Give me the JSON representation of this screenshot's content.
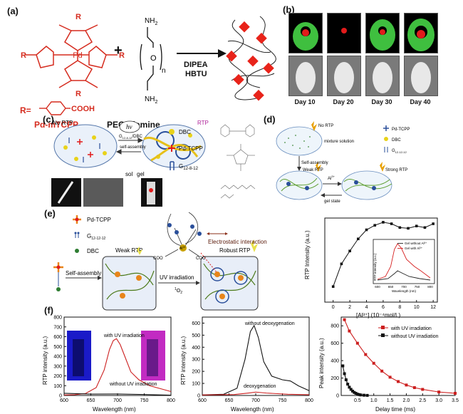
{
  "panel_labels": {
    "a": "(a)",
    "b": "(b)",
    "c": "(c)",
    "d": "(d)",
    "e": "(e)",
    "f": "(f)"
  },
  "a": {
    "R": "R",
    "Pd": "Pd",
    "N": "N",
    "r_def": "R=",
    "cooh": "COOH",
    "plus": "+",
    "nh2": "NH",
    "sub2": "2",
    "O": "O",
    "n": "n",
    "reagent1": "DIPEA",
    "reagent2": "HBTU",
    "name1": "Pd-mTCPP",
    "name2": "PEG-diamine"
  },
  "b": {
    "days": [
      "Day 10",
      "Day 20",
      "Day 30",
      "Day 40"
    ]
  },
  "c": {
    "no_rtp": "No RTP",
    "hv": "hv",
    "rtp": "RTP",
    "assembly_line1": "G",
    "assembly_sub": "12-8-12",
    "assembly_line1b": "/DBC",
    "assembly_line2": "self-assembly",
    "sol": "sol",
    "gel": "gel",
    "dbc": "DBC",
    "pd": "Pd-TCPP",
    "g": "G",
    "g_sub": "12-8-12"
  },
  "d": {
    "no_rtp": "No RTP",
    "mix": "mixture solution",
    "pd": "Pd-TCPP",
    "dbc": "DBC",
    "g": "G",
    "g_sub": "12-12-12",
    "self_assembly": "Self-assembly",
    "weak": "Weak RTP",
    "al": "Al",
    "al_sup": "3+",
    "strong": "Strong RTP",
    "gel_state": "gel state"
  },
  "e": {
    "pd": "Pd-TCPP",
    "g": "G",
    "g_sub": "12-12-12",
    "dbc": "DBC",
    "weak": "Weak RTP",
    "robust": "Robust RTP",
    "self_assembly": "Self-assembly",
    "uv": "UV irradiation",
    "o2": "O",
    "o2_sub": "2",
    "o2_sup": "1",
    "electro": "Electrostatic interaction",
    "coo": "COO",
    "al": "Al",
    "plus3": "3+",
    "N": "N",
    "R": "R"
  },
  "chart_data": [
    {
      "id": "e_al_titration",
      "type": "line",
      "xlabel": "[Al³⁺] (10⁻⁴mol/L)",
      "ylabel": "RTP Intensity (a.u.)",
      "xlim": [
        -1,
        12.5
      ],
      "xticks": [
        "0",
        "2",
        "4",
        "6",
        "8",
        "10",
        "12"
      ],
      "x": [
        0,
        1,
        2,
        3,
        4,
        5,
        6,
        7,
        8,
        9,
        10,
        11,
        12
      ],
      "y": [
        0.15,
        0.45,
        0.62,
        0.78,
        0.9,
        0.96,
        1.0,
        0.98,
        0.93,
        0.92,
        0.95,
        0.93,
        0.98
      ],
      "inset": {
        "ylabel": "RTP intensity (a.u.)",
        "xlabel": "Wavelength (nm)",
        "xticks": [
          "600",
          "650",
          "700",
          "750",
          "800"
        ],
        "series": [
          {
            "name": "Gel without Al³⁺",
            "color": "#222222"
          },
          {
            "name": "Gel with Al³⁺",
            "color": "#d62020"
          }
        ]
      }
    },
    {
      "id": "f1",
      "type": "line",
      "xlabel": "Wavelength (nm)",
      "ylabel": "RTP intensity (a.u.)",
      "xlim": [
        600,
        800
      ],
      "ylim": [
        0,
        800
      ],
      "xticks": [
        "600",
        "650",
        "700",
        "750",
        "800"
      ],
      "yticks": [
        "0",
        "100",
        "200",
        "300",
        "400",
        "500",
        "600",
        "700",
        "800"
      ],
      "annotations": [
        "with UV irradiation",
        "without UV irradiation"
      ],
      "series": [
        {
          "name": "with UV irradiation",
          "color": "#cc1f1f",
          "x": [
            600,
            620,
            640,
            660,
            675,
            685,
            692,
            698,
            705,
            715,
            725,
            740,
            760,
            780,
            800
          ],
          "y": [
            5,
            8,
            20,
            80,
            260,
            470,
            560,
            580,
            520,
            380,
            240,
            160,
            100,
            70,
            40
          ]
        },
        {
          "name": "without UV irradiation",
          "color": "#111111",
          "x": [
            600,
            650,
            700,
            750,
            800
          ],
          "y": [
            22,
            14,
            15,
            10,
            3
          ]
        }
      ]
    },
    {
      "id": "f2",
      "type": "line",
      "xlabel": "Wavelength (nm)",
      "ylabel": "RTP intensity (a.u.)",
      "xlim": [
        600,
        800
      ],
      "ylim": [
        0,
        650
      ],
      "xticks": [
        "600",
        "650",
        "700",
        "750",
        "800"
      ],
      "yticks": [
        "0",
        "100",
        "200",
        "300",
        "400",
        "500",
        "600"
      ],
      "annotations": [
        "without deoxygenation",
        "deoxygenation"
      ],
      "series": [
        {
          "name": "without deoxygenation",
          "color": "#111111",
          "x": [
            600,
            640,
            665,
            680,
            690,
            697,
            705,
            715,
            730,
            750,
            765,
            780,
            800
          ],
          "y": [
            5,
            10,
            60,
            300,
            530,
            580,
            480,
            280,
            160,
            130,
            120,
            80,
            40
          ]
        },
        {
          "name": "deoxygenation",
          "color": "#cc1f1f",
          "x": [
            600,
            660,
            690,
            700,
            720,
            760,
            800
          ],
          "y": [
            4,
            8,
            22,
            28,
            20,
            10,
            6
          ]
        }
      ]
    },
    {
      "id": "f3",
      "type": "scatter",
      "xlabel": "Delay time (ms)",
      "ylabel": "Peak intensity (a.u.)",
      "xlim": [
        0,
        3.5
      ],
      "ylim": [
        0,
        900
      ],
      "xticks": [
        "0.5",
        "1.0",
        "1.5",
        "2.0",
        "2.5",
        "3.0",
        "3.5"
      ],
      "yticks": [
        "0",
        "200",
        "400",
        "600",
        "800"
      ],
      "series": [
        {
          "name": "with UV irradiation",
          "color": "#cc1f1f",
          "x": [
            0.1,
            0.25,
            0.5,
            0.75,
            1.0,
            1.25,
            1.5,
            1.75,
            2.0,
            2.25,
            2.5,
            3.0,
            3.5
          ],
          "y": [
            870,
            740,
            600,
            470,
            370,
            280,
            210,
            160,
            120,
            90,
            70,
            40,
            25
          ]
        },
        {
          "name": "without UV irradiation",
          "color": "#111111",
          "x": [
            0.05,
            0.1,
            0.15,
            0.2,
            0.25,
            0.3,
            0.35,
            0.4,
            0.45,
            0.5,
            0.55,
            0.6,
            0.7,
            0.8
          ],
          "y": [
            340,
            250,
            180,
            130,
            95,
            70,
            50,
            35,
            25,
            15,
            10,
            6,
            3,
            1
          ]
        }
      ]
    }
  ]
}
